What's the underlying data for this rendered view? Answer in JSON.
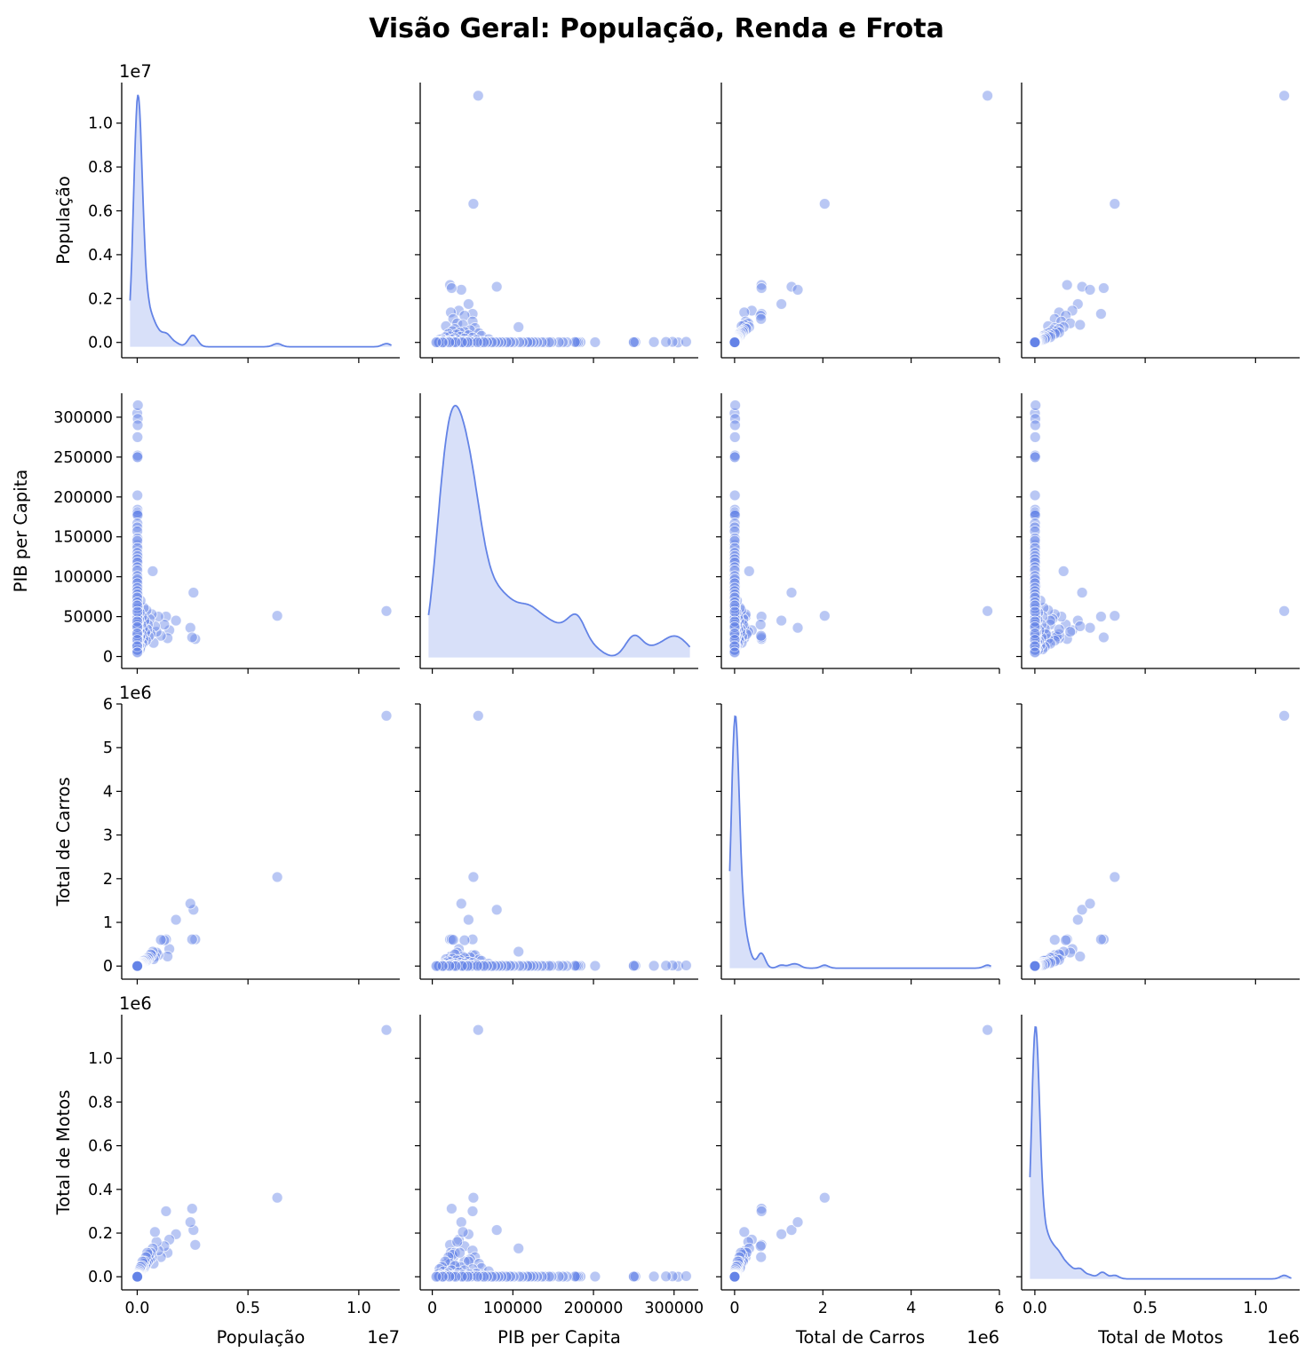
{
  "figure": {
    "title": "Visão Geral: População, Renda e Frota"
  },
  "chart_data": {
    "type": "scatter",
    "title": "Visão Geral: População, Renda e Frota",
    "kind": "pairplot",
    "diagonal": "kde",
    "color": "#6383e6",
    "variables": [
      {
        "key": "pop",
        "label": "População",
        "lim": [
          -700000,
          11850000
        ],
        "ticks": [
          0,
          2000000,
          4000000,
          6000000,
          8000000,
          10000000
        ],
        "tick_labels": [
          "0.0",
          "0.2",
          "0.4",
          "0.6",
          "0.8",
          "1.0"
        ],
        "xticks": [
          0,
          5000000,
          10000000
        ],
        "xtick_labels": [
          "0.0",
          "0.5",
          "1.0"
        ],
        "offset": "1e7"
      },
      {
        "key": "pib",
        "label": "PIB per Capita",
        "lim": [
          -15000,
          330000
        ],
        "ticks": [
          0,
          50000,
          100000,
          150000,
          200000,
          250000,
          300000
        ],
        "tick_labels": [
          "0",
          "50000",
          "100000",
          "150000",
          "200000",
          "250000",
          "300000"
        ],
        "xticks": [
          0,
          100000,
          200000,
          300000
        ],
        "xtick_labels": [
          "0",
          "100000",
          "200000",
          "300000"
        ],
        "offset": ""
      },
      {
        "key": "carros",
        "label": "Total de Carros",
        "lim": [
          -300000,
          6000000
        ],
        "ticks": [
          0,
          1000000,
          2000000,
          3000000,
          4000000,
          5000000,
          6000000
        ],
        "tick_labels": [
          "0",
          "1",
          "2",
          "3",
          "4",
          "5",
          "6"
        ],
        "xticks": [
          0,
          2000000,
          4000000,
          6000000
        ],
        "xtick_labels": [
          "0",
          "2",
          "4",
          "6"
        ],
        "offset": "1e6"
      },
      {
        "key": "motos",
        "label": "Total de Motos",
        "lim": [
          -60000,
          1200000
        ],
        "ticks": [
          0,
          200000,
          400000,
          600000,
          800000,
          1000000
        ],
        "tick_labels": [
          "0.0",
          "0.2",
          "0.4",
          "0.6",
          "0.8",
          "1.0"
        ],
        "xticks": [
          0,
          500000,
          1000000
        ],
        "xtick_labels": [
          "0.0",
          "0.5",
          "1.0"
        ],
        "offset": "1e6"
      }
    ],
    "points": [
      [
        11250000,
        57000,
        5730000,
        1130000
      ],
      [
        6320000,
        51000,
        2040000,
        362000
      ],
      [
        2620000,
        22000,
        610000,
        146000
      ],
      [
        2540000,
        80000,
        1290000,
        214000
      ],
      [
        2400000,
        36000,
        1430000,
        250000
      ],
      [
        2480000,
        24000,
        610000,
        312000
      ],
      [
        1750000,
        45000,
        1060000,
        195000
      ],
      [
        1450000,
        33000,
        390000,
        170000
      ],
      [
        1300000,
        50000,
        610000,
        300000
      ],
      [
        1370000,
        23000,
        220000,
        110000
      ],
      [
        1220000,
        40000,
        590000,
        140000
      ],
      [
        1070000,
        26000,
        600000,
        90000
      ],
      [
        950000,
        50000,
        250000,
        120000
      ],
      [
        870000,
        31000,
        310000,
        160000
      ],
      [
        800000,
        38000,
        220000,
        205000
      ],
      [
        740000,
        17000,
        160000,
        60000
      ],
      [
        700000,
        107000,
        330000,
        130000
      ],
      [
        660000,
        53000,
        250000,
        90000
      ],
      [
        610000,
        28000,
        270000,
        110000
      ],
      [
        560000,
        47000,
        200000,
        80000
      ],
      [
        520000,
        25000,
        170000,
        100000
      ],
      [
        480000,
        40000,
        190000,
        70000
      ],
      [
        450000,
        34000,
        140000,
        110000
      ],
      [
        420000,
        58000,
        150000,
        60000
      ],
      [
        390000,
        20000,
        110000,
        90000
      ],
      [
        360000,
        30000,
        130000,
        50000
      ],
      [
        330000,
        45000,
        100000,
        70000
      ],
      [
        300000,
        61000,
        120000,
        40000
      ],
      [
        280000,
        22000,
        90000,
        60000
      ],
      [
        260000,
        35000,
        80000,
        45000
      ],
      [
        240000,
        16000,
        70000,
        70000
      ],
      [
        220000,
        50000,
        75000,
        35000
      ],
      [
        200000,
        28000,
        60000,
        50000
      ],
      [
        180000,
        40000,
        55000,
        30000
      ],
      [
        160000,
        12000,
        40000,
        45000
      ],
      [
        150000,
        70000,
        55000,
        25000
      ],
      [
        130000,
        24000,
        35000,
        30000
      ],
      [
        120000,
        9000,
        20000,
        35000
      ],
      [
        110000,
        55000,
        40000,
        15000
      ],
      [
        100000,
        33000,
        30000,
        20000
      ],
      [
        90000,
        14000,
        15000,
        25000
      ],
      [
        80000,
        46000,
        25000,
        12000
      ],
      [
        70000,
        20000,
        12000,
        18000
      ],
      [
        60000,
        38000,
        18000,
        9000
      ],
      [
        50000,
        8000,
        8000,
        14000
      ],
      [
        45000,
        27000,
        12000,
        7000
      ],
      [
        40000,
        62000,
        16000,
        5000
      ],
      [
        35000,
        18000,
        6000,
        10000
      ],
      [
        30000,
        43000,
        10000,
        4000
      ],
      [
        25000,
        11000,
        4000,
        8000
      ],
      [
        22000,
        88000,
        9000,
        3000
      ],
      [
        20000,
        30000,
        5000,
        6000
      ],
      [
        18000,
        15000,
        3000,
        5000
      ],
      [
        16000,
        52000,
        6000,
        2500
      ],
      [
        14000,
        23000,
        3000,
        4000
      ],
      [
        12000,
        72000,
        5000,
        2000
      ],
      [
        10000,
        9000,
        1500,
        3000
      ],
      [
        9000,
        36000,
        2500,
        1500
      ],
      [
        8000,
        120000,
        4000,
        1000
      ],
      [
        7000,
        16000,
        1200,
        2000
      ],
      [
        6000,
        48000,
        2000,
        1000
      ],
      [
        5000,
        6000,
        600,
        1500
      ],
      [
        4500,
        95000,
        1800,
        600
      ],
      [
        4000,
        26000,
        900,
        900
      ],
      [
        3500,
        140000,
        1500,
        500
      ],
      [
        3000,
        12000,
        500,
        800
      ],
      [
        2500,
        180000,
        1200,
        400
      ],
      [
        2000,
        40000,
        700,
        500
      ],
      [
        1500,
        250000,
        800,
        300
      ],
      [
        1200,
        8000,
        300,
        400
      ],
      [
        1000,
        305000,
        700,
        200
      ],
      [
        800,
        60000,
        300,
        300
      ],
      [
        30000,
        315000,
        15000,
        3000
      ],
      [
        25000,
        298000,
        12000,
        2000
      ],
      [
        20000,
        290000,
        9000,
        1800
      ],
      [
        15000,
        275000,
        7000,
        1500
      ],
      [
        18000,
        252000,
        8000,
        1200
      ],
      [
        12000,
        250000,
        6000,
        1000
      ],
      [
        10000,
        202000,
        5000,
        900
      ],
      [
        14000,
        184000,
        6000,
        1100
      ],
      [
        9000,
        181000,
        4000,
        700
      ],
      [
        11000,
        179000,
        5000,
        800
      ],
      [
        16000,
        177000,
        7000,
        1300
      ],
      [
        8000,
        167000,
        3000,
        600
      ],
      [
        7000,
        162000,
        2500,
        500
      ],
      [
        6000,
        157000,
        2000,
        450
      ],
      [
        13000,
        148000,
        5500,
        1000
      ],
      [
        5500,
        145000,
        2000,
        400
      ],
      [
        9500,
        136000,
        3500,
        750
      ],
      [
        4800,
        130000,
        1600,
        350
      ],
      [
        12500,
        126000,
        4500,
        900
      ],
      [
        6500,
        122000,
        2200,
        500
      ],
      [
        8500,
        118000,
        3000,
        650
      ],
      [
        4200,
        112000,
        1400,
        300
      ],
      [
        7500,
        108000,
        2700,
        550
      ],
      [
        5200,
        101000,
        1800,
        380
      ],
      [
        11000,
        97000,
        4000,
        820
      ],
      [
        3800,
        92000,
        1300,
        280
      ],
      [
        6800,
        86000,
        2400,
        500
      ],
      [
        4600,
        82000,
        1600,
        330
      ],
      [
        9800,
        78000,
        3500,
        720
      ],
      [
        3300,
        74000,
        1100,
        250
      ],
      [
        7200,
        68000,
        2600,
        520
      ],
      [
        2900,
        64000,
        1000,
        220
      ],
      [
        8800,
        56000,
        3200,
        640
      ],
      [
        3600,
        44000,
        1200,
        260
      ],
      [
        6200,
        37000,
        2200,
        450
      ],
      [
        2700,
        29000,
        900,
        200
      ],
      [
        5800,
        21000,
        2000,
        420
      ],
      [
        2300,
        13000,
        800,
        170
      ],
      [
        4400,
        5000,
        1500,
        320
      ]
    ]
  }
}
